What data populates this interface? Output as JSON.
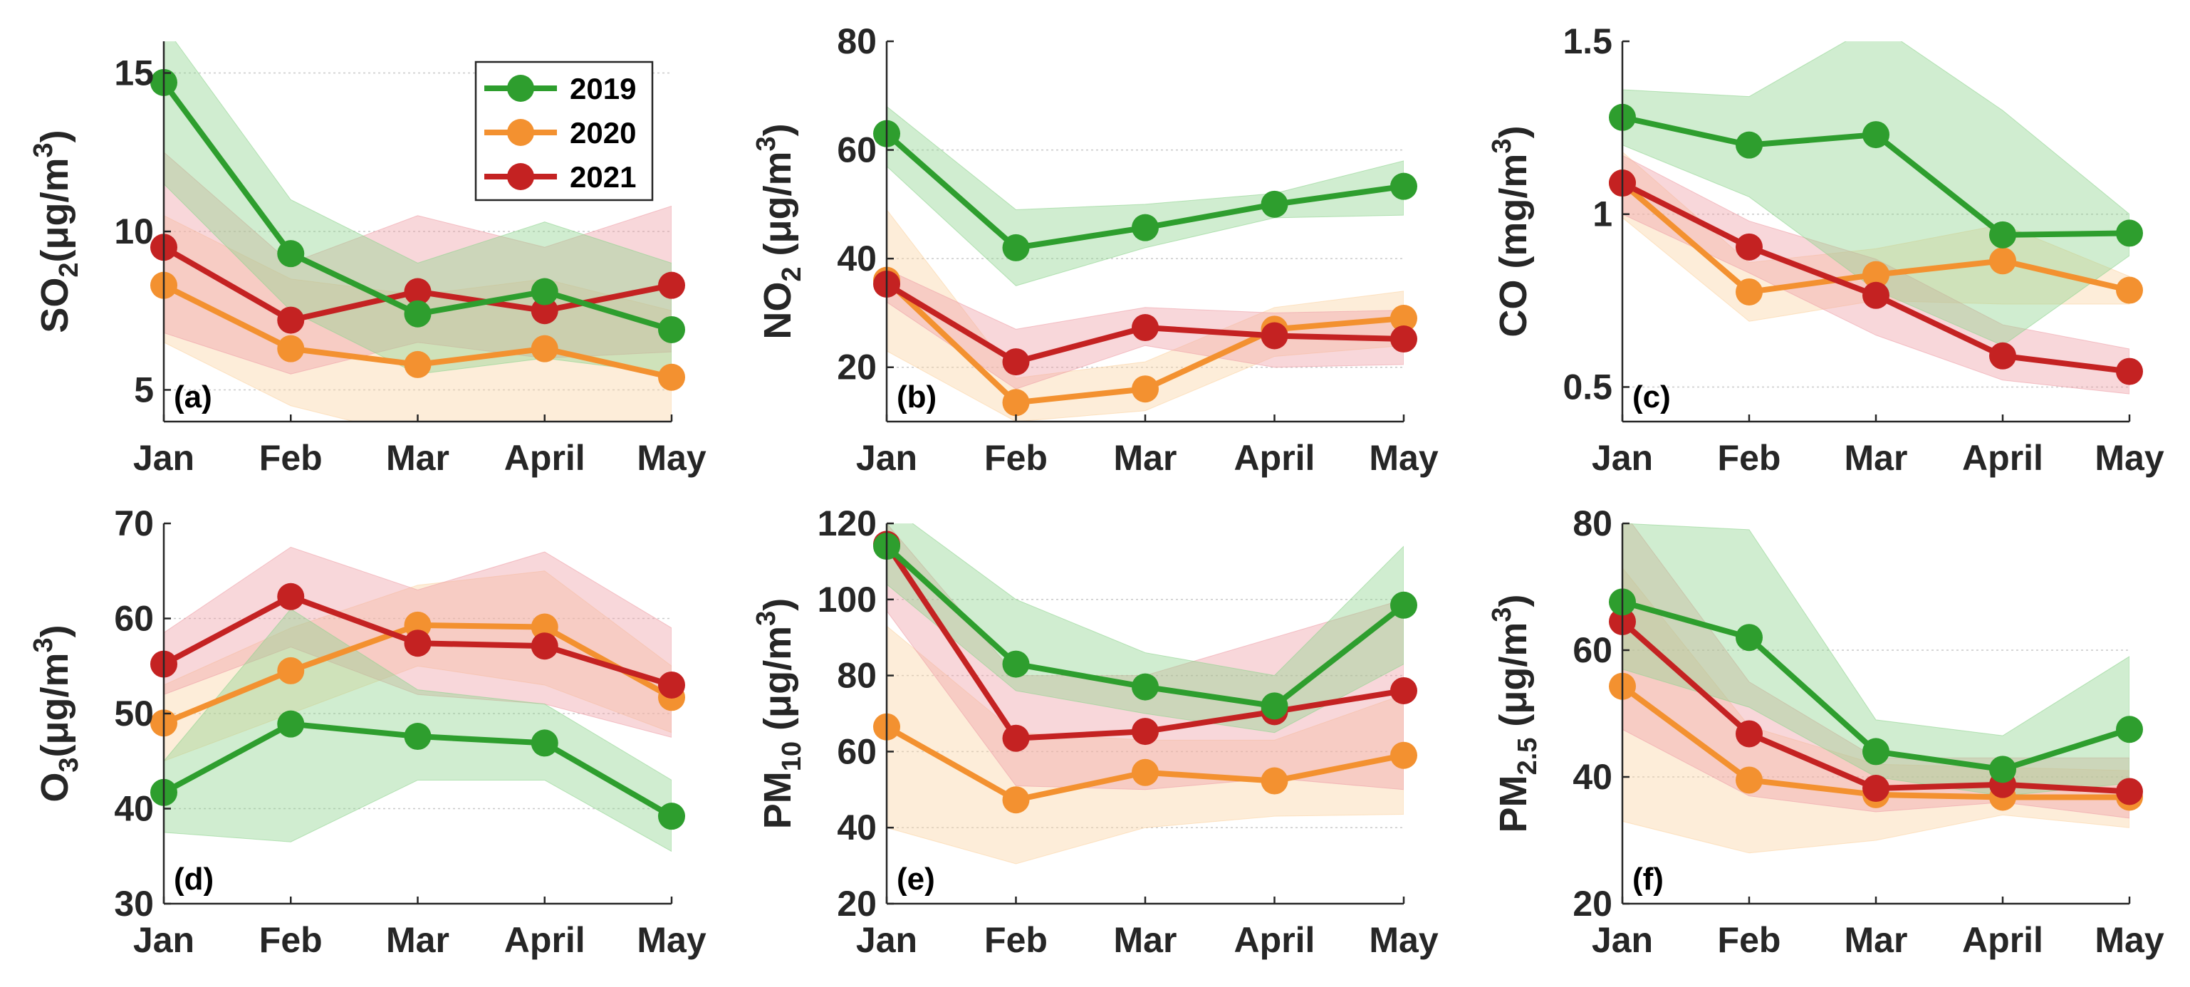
{
  "colors": {
    "2019": "#2e9e2e",
    "2020": "#f39130",
    "2021": "#c42222",
    "band_2019": "#8fd48f",
    "band_2020": "#fbd4a4",
    "band_2021": "#eea0a8"
  },
  "legend": [
    "2019",
    "2020",
    "2021"
  ],
  "chart_data": [
    {
      "type": "line",
      "panel": "(a)",
      "ylabel": "SO",
      "ylabel_sub": "2",
      "ylabel_unit": "(μg/m",
      "ylabel_sup": "3",
      "ylabel_close": ")",
      "categories": [
        "Jan",
        "Feb",
        "Mar",
        "April",
        "May"
      ],
      "ylim": [
        4,
        16
      ],
      "yticks": [
        "5",
        "10",
        "15"
      ],
      "ytick_values": [
        5,
        10,
        15
      ],
      "series": [
        {
          "name": "2019",
          "values": [
            14.7,
            9.3,
            7.4,
            8.1,
            6.9
          ],
          "lower": [
            11.5,
            7.5,
            5.5,
            6.0,
            5.5
          ],
          "upper": [
            16.5,
            11.0,
            9.0,
            10.3,
            9.0
          ]
        },
        {
          "name": "2020",
          "values": [
            8.3,
            6.3,
            5.8,
            6.3,
            5.4
          ],
          "lower": [
            6.5,
            4.5,
            3.5,
            3.5,
            3.5
          ],
          "upper": [
            10.5,
            8.5,
            8.0,
            8.5,
            7.5
          ]
        },
        {
          "name": "2021",
          "values": [
            9.5,
            7.2,
            8.1,
            7.5,
            8.3
          ],
          "lower": [
            6.8,
            5.5,
            6.5,
            6.0,
            6.2
          ],
          "upper": [
            12.5,
            9.0,
            10.5,
            9.5,
            10.8
          ]
        }
      ]
    },
    {
      "type": "line",
      "panel": "(b)",
      "ylabel": "NO",
      "ylabel_sub": "2",
      "ylabel_unit": " (μg/m",
      "ylabel_sup": "3",
      "ylabel_close": ")",
      "categories": [
        "Jan",
        "Feb",
        "Mar",
        "April",
        "May"
      ],
      "ylim": [
        10,
        80
      ],
      "yticks": [
        "20",
        "40",
        "60",
        "80"
      ],
      "ytick_values": [
        20,
        40,
        60,
        80
      ],
      "series": [
        {
          "name": "2019",
          "values": [
            63,
            42,
            45.7,
            50,
            53.3
          ],
          "lower": [
            57,
            35,
            42,
            47.5,
            48
          ],
          "upper": [
            68,
            49,
            50,
            52,
            58
          ]
        },
        {
          "name": "2020",
          "values": [
            36,
            13.5,
            16,
            27,
            29
          ],
          "lower": [
            23,
            10,
            12,
            22,
            24
          ],
          "upper": [
            49,
            18,
            21,
            31,
            34
          ]
        },
        {
          "name": "2021",
          "values": [
            35.3,
            21,
            27.3,
            25.8,
            25.2
          ],
          "lower": [
            32,
            16,
            24,
            20,
            20.5
          ],
          "upper": [
            38,
            27,
            31,
            30,
            30.5
          ]
        }
      ]
    },
    {
      "type": "line",
      "panel": "(c)",
      "ylabel": "CO (mg/m",
      "ylabel_sub": "",
      "ylabel_unit": "",
      "ylabel_sup": "3",
      "ylabel_close": ")",
      "categories": [
        "Jan",
        "Feb",
        "Mar",
        "April",
        "May"
      ],
      "ylim": [
        0.4,
        1.5
      ],
      "yticks": [
        "0.5",
        "1",
        "1.5"
      ],
      "ytick_values": [
        0.5,
        1.0,
        1.5
      ],
      "series": [
        {
          "name": "2019",
          "values": [
            1.28,
            1.2,
            1.23,
            0.94,
            0.945
          ],
          "lower": [
            1.2,
            1.05,
            0.78,
            0.62,
            0.88
          ],
          "upper": [
            1.36,
            1.34,
            1.55,
            1.3,
            1.0
          ]
        },
        {
          "name": "2020",
          "values": [
            1.09,
            0.775,
            0.825,
            0.865,
            0.78
          ],
          "lower": [
            0.99,
            0.69,
            0.75,
            0.74,
            0.74
          ],
          "upper": [
            1.18,
            0.86,
            0.9,
            0.97,
            0.82
          ]
        },
        {
          "name": "2021",
          "values": [
            1.09,
            0.905,
            0.765,
            0.59,
            0.545
          ],
          "lower": [
            1.0,
            0.83,
            0.65,
            0.52,
            0.48
          ],
          "upper": [
            1.17,
            0.98,
            0.87,
            0.68,
            0.61
          ]
        }
      ]
    },
    {
      "type": "line",
      "panel": "(d)",
      "ylabel": "O",
      "ylabel_sub": "3",
      "ylabel_unit": "(μg/m",
      "ylabel_sup": "3",
      "ylabel_close": ")",
      "categories": [
        "Jan",
        "Feb",
        "Mar",
        "April",
        "May"
      ],
      "ylim": [
        30,
        70
      ],
      "yticks": [
        "30",
        "40",
        "50",
        "60",
        "70"
      ],
      "ytick_values": [
        30,
        40,
        50,
        60,
        70
      ],
      "series": [
        {
          "name": "2019",
          "values": [
            41.7,
            48.9,
            47.6,
            46.9,
            39.2
          ],
          "lower": [
            37.5,
            36.5,
            43,
            43,
            35.5
          ],
          "upper": [
            45,
            61,
            52.5,
            51,
            43
          ]
        },
        {
          "name": "2020",
          "values": [
            49,
            54.5,
            59.3,
            59.1,
            51.7
          ],
          "lower": [
            45,
            50,
            55,
            53,
            48
          ],
          "upper": [
            53,
            59,
            63.5,
            65,
            55
          ]
        },
        {
          "name": "2021",
          "values": [
            55.2,
            62.3,
            57.4,
            57.1,
            53
          ],
          "lower": [
            52,
            57,
            52,
            51,
            47.5
          ],
          "upper": [
            58.5,
            67.5,
            63,
            67,
            59
          ]
        }
      ]
    },
    {
      "type": "line",
      "panel": "(e)",
      "ylabel": "PM",
      "ylabel_sub": "10",
      "ylabel_unit": " (μg/m",
      "ylabel_sup": "3",
      "ylabel_close": ")",
      "categories": [
        "Jan",
        "Feb",
        "Mar",
        "April",
        "May"
      ],
      "ylim": [
        20,
        120
      ],
      "yticks": [
        "20",
        "40",
        "60",
        "80",
        "100",
        "120"
      ],
      "ytick_values": [
        20,
        40,
        60,
        80,
        100,
        120
      ],
      "series": [
        {
          "name": "2019",
          "values": [
            114,
            83,
            77,
            72,
            98.5
          ],
          "lower": [
            104,
            76,
            70,
            65,
            83
          ],
          "upper": [
            125,
            100,
            86,
            80,
            114
          ]
        },
        {
          "name": "2020",
          "values": [
            66.5,
            47.3,
            54.5,
            52.3,
            59
          ],
          "lower": [
            40,
            30.5,
            40,
            43,
            43.5
          ],
          "upper": [
            93,
            65,
            63,
            63,
            75
          ]
        },
        {
          "name": "2021",
          "values": [
            114.5,
            63.5,
            65.3,
            70.5,
            76
          ],
          "lower": [
            97,
            51,
            50,
            53,
            50
          ],
          "upper": [
            120,
            80,
            80,
            90,
            100
          ]
        }
      ]
    },
    {
      "type": "line",
      "panel": "(f)",
      "ylabel": "PM",
      "ylabel_sub": "2.5",
      "ylabel_unit": " (μg/m",
      "ylabel_sup": "3",
      "ylabel_close": ")",
      "categories": [
        "Jan",
        "Feb",
        "Mar",
        "April",
        "May"
      ],
      "ylim": [
        20,
        80
      ],
      "yticks": [
        "20",
        "40",
        "60",
        "80"
      ],
      "ytick_values": [
        20,
        40,
        60,
        80
      ],
      "series": [
        {
          "name": "2019",
          "values": [
            67.6,
            62,
            44,
            41.2,
            47.5
          ],
          "lower": [
            57,
            51,
            40,
            37,
            39
          ],
          "upper": [
            80,
            79,
            49,
            46.5,
            59
          ]
        },
        {
          "name": "2020",
          "values": [
            54.3,
            39.5,
            37.2,
            36.8,
            36.8
          ],
          "lower": [
            33,
            28,
            30,
            34,
            32
          ],
          "upper": [
            73,
            48,
            42,
            41.5,
            41
          ]
        },
        {
          "name": "2021",
          "values": [
            64.5,
            46.8,
            38.2,
            38.8,
            37.7
          ],
          "lower": [
            47.5,
            37,
            34.5,
            36,
            33.5
          ],
          "upper": [
            82,
            55,
            43,
            43,
            43
          ]
        }
      ]
    }
  ]
}
